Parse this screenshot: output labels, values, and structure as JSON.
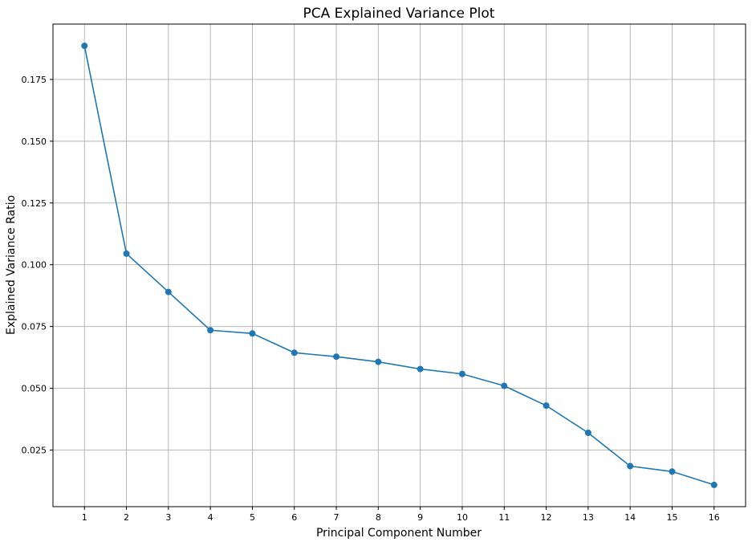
{
  "chart_data": {
    "type": "line",
    "title": "PCA Explained Variance Plot",
    "xlabel": "Principal Component Number",
    "ylabel": "Explained Variance Ratio",
    "x": [
      1,
      2,
      3,
      4,
      5,
      6,
      7,
      8,
      9,
      10,
      11,
      12,
      13,
      14,
      15,
      16
    ],
    "x_ticks": [
      "1",
      "2",
      "3",
      "4",
      "5",
      "6",
      "7",
      "8",
      "9",
      "10",
      "11",
      "12",
      "13",
      "14",
      "15",
      "16"
    ],
    "y_ticks": [
      "0.025",
      "0.050",
      "0.075",
      "0.100",
      "0.125",
      "0.150",
      "0.175"
    ],
    "y_tick_values": [
      0.025,
      0.05,
      0.075,
      0.1,
      0.125,
      0.15,
      0.175
    ],
    "xlim": [
      0.25,
      16.75
    ],
    "ylim": [
      0.0021,
      0.1974
    ],
    "grid": true,
    "series": [
      {
        "values": [
          0.1886,
          0.1045,
          0.089,
          0.0735,
          0.0722,
          0.0644,
          0.0628,
          0.0607,
          0.0578,
          0.0558,
          0.051,
          0.043,
          0.032,
          0.0185,
          0.0163,
          0.0109
        ],
        "color": "#1f77b4",
        "marker": "circle"
      }
    ]
  }
}
